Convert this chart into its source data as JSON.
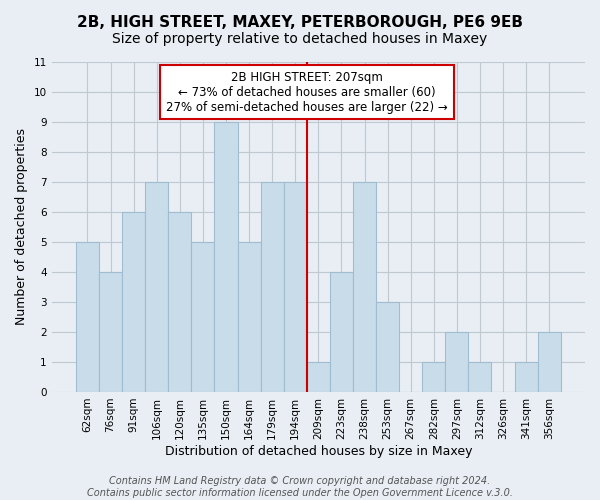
{
  "title": "2B, HIGH STREET, MAXEY, PETERBOROUGH, PE6 9EB",
  "subtitle": "Size of property relative to detached houses in Maxey",
  "xlabel": "Distribution of detached houses by size in Maxey",
  "ylabel": "Number of detached properties",
  "bar_labels": [
    "62sqm",
    "76sqm",
    "91sqm",
    "106sqm",
    "120sqm",
    "135sqm",
    "150sqm",
    "164sqm",
    "179sqm",
    "194sqm",
    "209sqm",
    "223sqm",
    "238sqm",
    "253sqm",
    "267sqm",
    "282sqm",
    "297sqm",
    "312sqm",
    "326sqm",
    "341sqm",
    "356sqm"
  ],
  "bar_values": [
    5,
    4,
    6,
    7,
    6,
    5,
    9,
    5,
    7,
    7,
    1,
    4,
    7,
    3,
    0,
    1,
    2,
    1,
    0,
    1,
    2
  ],
  "bar_color": "#c9dcea",
  "bar_edge_color": "#a0bcd0",
  "ylim": [
    0,
    11
  ],
  "yticks": [
    0,
    1,
    2,
    3,
    4,
    5,
    6,
    7,
    8,
    9,
    10,
    11
  ],
  "vline_index": 10,
  "vline_color": "#cc0000",
  "annotation_title": "2B HIGH STREET: 207sqm",
  "annotation_line1": "← 73% of detached houses are smaller (60)",
  "annotation_line2": "27% of semi-detached houses are larger (22) →",
  "annotation_box_color": "#ffffff",
  "annotation_box_edgecolor": "#cc0000",
  "footer_line1": "Contains HM Land Registry data © Crown copyright and database right 2024.",
  "footer_line2": "Contains public sector information licensed under the Open Government Licence v.3.0.",
  "background_color": "#e8eef4",
  "grid_color": "#c0c8d0",
  "title_fontsize": 11,
  "subtitle_fontsize": 10,
  "axis_label_fontsize": 9,
  "tick_fontsize": 7.5,
  "footer_fontsize": 7,
  "annotation_fontsize": 8.5
}
